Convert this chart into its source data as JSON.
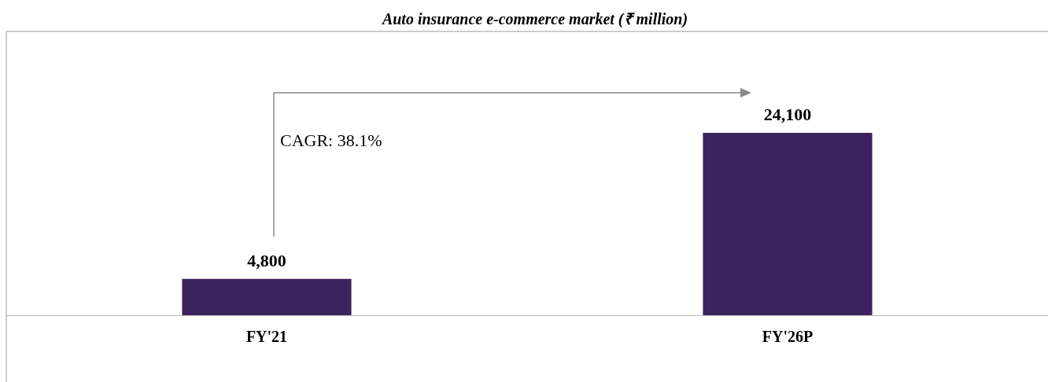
{
  "chart_data": {
    "type": "bar",
    "title": "Auto insurance e-commerce market (₹ million)",
    "categories": [
      "FY'21",
      "FY'26P"
    ],
    "values": [
      4800,
      24100
    ],
    "color": "#3d2260",
    "value_labels": [
      "4,800",
      "24,100"
    ],
    "annotations": [
      "CAGR: 38.1%"
    ]
  }
}
